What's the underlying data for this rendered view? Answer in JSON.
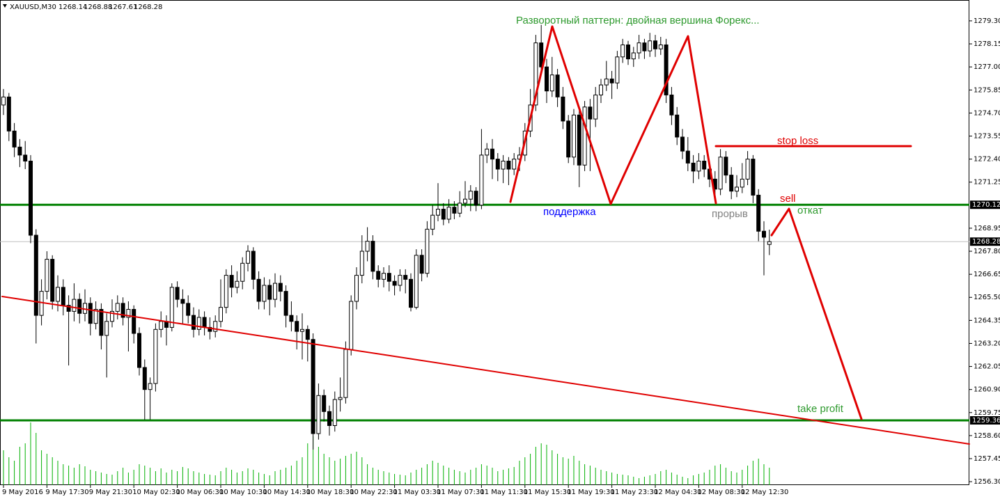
{
  "chart_data": {
    "type": "candlestick",
    "title": "XAUUSD,M30",
    "quote": [
      1268.14,
      1268.88,
      1267.61,
      1268.28
    ],
    "up_color": "#ffffff",
    "down_color": "#000000",
    "wick_color": "#000000",
    "volume_color": "#00b000",
    "ylim": [
      1256.13,
      1280.34
    ],
    "yticks": [
      {
        "value": 1279.3,
        "label": "1279.30"
      },
      {
        "value": 1278.15,
        "label": "1278.15"
      },
      {
        "value": 1277.0,
        "label": "1277.00"
      },
      {
        "value": 1275.85,
        "label": "1275.85"
      },
      {
        "value": 1274.7,
        "label": "1274.70"
      },
      {
        "value": 1273.55,
        "label": "1273.55"
      },
      {
        "value": 1272.4,
        "label": "1272.40"
      },
      {
        "value": 1271.25,
        "label": "1271.25"
      },
      {
        "value": 1268.95,
        "label": "1268.95"
      },
      {
        "value": 1267.8,
        "label": "1267.80"
      },
      {
        "value": 1266.65,
        "label": "1266.65"
      },
      {
        "value": 1265.5,
        "label": "1265.50"
      },
      {
        "value": 1264.35,
        "label": "1264.35"
      },
      {
        "value": 1263.2,
        "label": "1263.20"
      },
      {
        "value": 1262.05,
        "label": "1262.05"
      },
      {
        "value": 1260.9,
        "label": "1260.90"
      },
      {
        "value": 1259.75,
        "label": "1259.75"
      },
      {
        "value": 1258.6,
        "label": "1258.60"
      },
      {
        "value": 1257.45,
        "label": "1257.45"
      },
      {
        "value": 1256.3,
        "label": "1256.30"
      }
    ],
    "xticks": [
      {
        "value": 0,
        "label": "9 May 2016"
      },
      {
        "value": 8,
        "label": "9 May 17:30"
      },
      {
        "value": 16,
        "label": "9 May 21:30"
      },
      {
        "value": 24,
        "label": "10 May 02:30"
      },
      {
        "value": 32,
        "label": "10 May 06:30"
      },
      {
        "value": 40,
        "label": "10 May 10:30"
      },
      {
        "value": 48,
        "label": "10 May 14:30"
      },
      {
        "value": 56,
        "label": "10 May 18:30"
      },
      {
        "value": 64,
        "label": "10 May 22:30"
      },
      {
        "value": 72,
        "label": "11 May 03:30"
      },
      {
        "value": 80,
        "label": "11 May 07:30"
      },
      {
        "value": 88,
        "label": "11 May 11:30"
      },
      {
        "value": 96,
        "label": "11 May 15:30"
      },
      {
        "value": 104,
        "label": "11 May 19:30"
      },
      {
        "value": 112,
        "label": "11 May 23:30"
      },
      {
        "value": 120,
        "label": "12 May 04:30"
      },
      {
        "value": 128,
        "label": "12 May 08:30"
      },
      {
        "value": 136,
        "label": "12 May 12:30"
      }
    ],
    "levels": [
      {
        "value": 1270.12,
        "color": "#008000"
      },
      {
        "value": 1268.28,
        "color": "#c0c0c0"
      },
      {
        "value": 1259.36,
        "color": "#008000"
      }
    ],
    "annotations": [
      {
        "text": "Разворотный паттерн: двойная вершина Форекс...",
        "color": "#2e9a2e"
      },
      {
        "text": "stop loss",
        "color": "#e00000"
      },
      {
        "text": "sell",
        "color": "#e00000"
      },
      {
        "text": "откат",
        "color": "#2e9a2e"
      },
      {
        "text": "поддержка",
        "color": "#0000ff"
      },
      {
        "text": "прорыв",
        "color": "#808080"
      },
      {
        "text": "take profit",
        "color": "#2e9a2e"
      }
    ],
    "ohlc": [
      [
        1275.1,
        1275.9,
        1274.6,
        1275.5
      ],
      [
        1275.5,
        1275.7,
        1273.3,
        1273.8
      ],
      [
        1273.8,
        1274.2,
        1272.5,
        1273.0
      ],
      [
        1273.0,
        1273.4,
        1272.0,
        1272.6
      ],
      [
        1272.6,
        1273.3,
        1271.9,
        1272.3
      ],
      [
        1272.3,
        1272.6,
        1268.2,
        1268.6
      ],
      [
        1268.6,
        1268.9,
        1263.2,
        1264.6
      ],
      [
        1264.6,
        1266.4,
        1264.1,
        1265.8
      ],
      [
        1265.8,
        1267.8,
        1265.4,
        1267.4
      ],
      [
        1267.4,
        1267.6,
        1264.9,
        1265.3
      ],
      [
        1265.3,
        1266.6,
        1264.8,
        1266.0
      ],
      [
        1266.0,
        1266.4,
        1264.6,
        1265.1
      ],
      [
        1265.1,
        1265.6,
        1262.1,
        1264.8
      ],
      [
        1264.8,
        1266.2,
        1264.3,
        1265.4
      ],
      [
        1265.4,
        1265.7,
        1264.2,
        1264.7
      ],
      [
        1264.7,
        1265.9,
        1264.3,
        1265.2
      ],
      [
        1265.2,
        1265.5,
        1263.6,
        1264.2
      ],
      [
        1264.2,
        1265.3,
        1263.9,
        1264.9
      ],
      [
        1264.9,
        1265.2,
        1262.9,
        1263.6
      ],
      [
        1263.6,
        1264.7,
        1261.5,
        1264.3
      ],
      [
        1264.3,
        1265.4,
        1264.0,
        1264.8
      ],
      [
        1264.8,
        1265.6,
        1264.4,
        1265.2
      ],
      [
        1265.2,
        1265.5,
        1264.1,
        1264.5
      ],
      [
        1264.5,
        1265.3,
        1262.8,
        1264.9
      ],
      [
        1264.9,
        1265.1,
        1263.2,
        1263.7
      ],
      [
        1263.7,
        1264.0,
        1261.6,
        1262.0
      ],
      [
        1262.0,
        1262.4,
        1259.4,
        1260.9
      ],
      [
        1260.9,
        1261.5,
        1259.4,
        1261.2
      ],
      [
        1261.2,
        1264.2,
        1260.8,
        1263.9
      ],
      [
        1263.9,
        1264.8,
        1263.5,
        1264.3
      ],
      [
        1264.3,
        1264.6,
        1263.1,
        1264.0
      ],
      [
        1264.0,
        1266.2,
        1263.8,
        1266.0
      ],
      [
        1266.0,
        1266.3,
        1265.0,
        1265.4
      ],
      [
        1265.4,
        1265.9,
        1264.2,
        1265.2
      ],
      [
        1265.2,
        1265.6,
        1264.2,
        1264.6
      ],
      [
        1264.6,
        1265.0,
        1263.5,
        1263.9
      ],
      [
        1263.9,
        1264.9,
        1263.6,
        1264.5
      ],
      [
        1264.5,
        1264.8,
        1263.6,
        1264.0
      ],
      [
        1264.0,
        1264.5,
        1263.4,
        1263.8
      ],
      [
        1263.8,
        1264.6,
        1263.5,
        1264.3
      ],
      [
        1264.3,
        1266.4,
        1264.0,
        1265.0
      ],
      [
        1265.0,
        1266.9,
        1264.7,
        1266.6
      ],
      [
        1266.6,
        1267.1,
        1265.5,
        1266.0
      ],
      [
        1266.0,
        1266.8,
        1265.7,
        1266.3
      ],
      [
        1266.3,
        1267.5,
        1265.9,
        1267.2
      ],
      [
        1267.2,
        1268.1,
        1266.8,
        1267.8
      ],
      [
        1267.8,
        1268.0,
        1265.9,
        1266.4
      ],
      [
        1266.4,
        1266.8,
        1264.9,
        1265.3
      ],
      [
        1265.3,
        1266.5,
        1264.9,
        1266.1
      ],
      [
        1266.1,
        1266.4,
        1264.6,
        1265.4
      ],
      [
        1265.4,
        1266.7,
        1265.0,
        1266.2
      ],
      [
        1266.2,
        1266.6,
        1265.3,
        1265.8
      ],
      [
        1265.8,
        1266.1,
        1264.0,
        1264.6
      ],
      [
        1264.6,
        1265.3,
        1263.8,
        1264.3
      ],
      [
        1264.3,
        1264.6,
        1262.9,
        1263.8
      ],
      [
        1263.8,
        1264.7,
        1262.4,
        1263.9
      ],
      [
        1263.9,
        1264.1,
        1262.3,
        1263.4
      ],
      [
        1263.4,
        1263.7,
        1257.9,
        1258.7
      ],
      [
        1258.7,
        1261.2,
        1258.4,
        1260.6
      ],
      [
        1260.6,
        1260.9,
        1259.3,
        1259.8
      ],
      [
        1259.8,
        1260.1,
        1258.6,
        1259.1
      ],
      [
        1259.1,
        1260.8,
        1258.8,
        1260.4
      ],
      [
        1260.4,
        1261.5,
        1259.8,
        1260.5
      ],
      [
        1260.5,
        1263.3,
        1260.2,
        1262.9
      ],
      [
        1262.9,
        1265.6,
        1262.6,
        1265.3
      ],
      [
        1265.3,
        1267.0,
        1264.9,
        1266.6
      ],
      [
        1266.6,
        1268.6,
        1266.2,
        1267.8
      ],
      [
        1267.8,
        1269.0,
        1267.3,
        1268.3
      ],
      [
        1268.3,
        1268.6,
        1266.4,
        1266.8
      ],
      [
        1266.8,
        1267.1,
        1266.0,
        1266.4
      ],
      [
        1266.4,
        1267.0,
        1266.0,
        1266.7
      ],
      [
        1266.7,
        1267.1,
        1265.8,
        1266.3
      ],
      [
        1266.3,
        1266.6,
        1265.6,
        1266.1
      ],
      [
        1266.1,
        1266.9,
        1265.8,
        1266.6
      ],
      [
        1266.6,
        1266.9,
        1265.7,
        1266.4
      ],
      [
        1266.4,
        1266.7,
        1264.8,
        1265.0
      ],
      [
        1265.0,
        1267.9,
        1264.9,
        1267.6
      ],
      [
        1267.6,
        1267.9,
        1266.3,
        1266.7
      ],
      [
        1266.7,
        1269.3,
        1266.5,
        1268.9
      ],
      [
        1268.9,
        1270.1,
        1268.6,
        1269.6
      ],
      [
        1269.6,
        1271.2,
        1269.3,
        1269.9
      ],
      [
        1269.9,
        1270.2,
        1269.1,
        1269.4
      ],
      [
        1269.4,
        1270.4,
        1269.2,
        1270.0
      ],
      [
        1270.0,
        1270.3,
        1269.4,
        1269.7
      ],
      [
        1269.7,
        1270.8,
        1269.5,
        1270.2
      ],
      [
        1270.2,
        1271.3,
        1270.0,
        1270.4
      ],
      [
        1270.4,
        1271.1,
        1269.8,
        1270.8
      ],
      [
        1270.8,
        1271.0,
        1269.8,
        1270.1
      ],
      [
        1270.1,
        1273.9,
        1269.9,
        1272.6
      ],
      [
        1272.6,
        1273.2,
        1272.2,
        1272.9
      ],
      [
        1272.9,
        1273.4,
        1271.4,
        1272.4
      ],
      [
        1272.4,
        1272.7,
        1271.3,
        1271.9
      ],
      [
        1271.9,
        1272.6,
        1271.2,
        1272.3
      ],
      [
        1272.3,
        1272.5,
        1271.1,
        1271.9
      ],
      [
        1271.9,
        1272.7,
        1271.6,
        1272.4
      ],
      [
        1272.4,
        1273.0,
        1271.8,
        1272.6
      ],
      [
        1272.6,
        1274.2,
        1272.3,
        1273.8
      ],
      [
        1273.8,
        1275.9,
        1273.5,
        1275.1
      ],
      [
        1275.1,
        1278.6,
        1274.8,
        1278.2
      ],
      [
        1278.2,
        1279.1,
        1276.6,
        1277.0
      ],
      [
        1277.0,
        1277.4,
        1275.2,
        1275.8
      ],
      [
        1275.8,
        1277.5,
        1275.5,
        1276.6
      ],
      [
        1276.6,
        1276.9,
        1275.0,
        1275.5
      ],
      [
        1275.5,
        1276.0,
        1273.9,
        1274.3
      ],
      [
        1274.3,
        1274.6,
        1272.2,
        1272.5
      ],
      [
        1272.5,
        1274.9,
        1272.1,
        1274.6
      ],
      [
        1274.6,
        1274.9,
        1271.0,
        1272.1
      ],
      [
        1272.1,
        1275.3,
        1271.8,
        1275.0
      ],
      [
        1275.0,
        1275.4,
        1271.8,
        1274.4
      ],
      [
        1274.4,
        1276.0,
        1274.0,
        1275.6
      ],
      [
        1275.6,
        1276.4,
        1275.2,
        1276.1
      ],
      [
        1276.1,
        1277.3,
        1275.8,
        1276.4
      ],
      [
        1276.4,
        1276.8,
        1275.4,
        1276.2
      ],
      [
        1276.2,
        1277.8,
        1275.9,
        1277.5
      ],
      [
        1277.5,
        1278.4,
        1277.2,
        1278.1
      ],
      [
        1278.1,
        1278.3,
        1277.1,
        1277.4
      ],
      [
        1277.4,
        1278.0,
        1277.0,
        1277.7
      ],
      [
        1277.7,
        1278.6,
        1277.4,
        1278.2
      ],
      [
        1278.2,
        1278.4,
        1277.4,
        1277.8
      ],
      [
        1277.8,
        1278.7,
        1277.5,
        1278.3
      ],
      [
        1278.3,
        1278.6,
        1277.5,
        1277.9
      ],
      [
        1277.9,
        1278.5,
        1277.6,
        1278.1
      ],
      [
        1278.1,
        1278.4,
        1275.2,
        1275.6
      ],
      [
        1275.6,
        1276.0,
        1274.1,
        1274.6
      ],
      [
        1274.6,
        1275.0,
        1273.1,
        1273.5
      ],
      [
        1273.5,
        1273.9,
        1272.4,
        1272.8
      ],
      [
        1272.8,
        1273.5,
        1271.8,
        1272.2
      ],
      [
        1272.2,
        1272.6,
        1271.2,
        1271.8
      ],
      [
        1271.8,
        1272.7,
        1271.4,
        1272.3
      ],
      [
        1272.3,
        1272.6,
        1271.5,
        1271.9
      ],
      [
        1271.9,
        1272.3,
        1271.0,
        1271.4
      ],
      [
        1271.4,
        1271.8,
        1270.5,
        1270.9
      ],
      [
        1270.9,
        1272.9,
        1270.6,
        1272.5
      ],
      [
        1272.5,
        1272.8,
        1271.2,
        1271.6
      ],
      [
        1271.6,
        1272.0,
        1270.4,
        1270.8
      ],
      [
        1270.8,
        1271.6,
        1270.5,
        1271.0
      ],
      [
        1271.0,
        1272.2,
        1270.7,
        1271.4
      ],
      [
        1271.4,
        1272.8,
        1271.1,
        1272.4
      ],
      [
        1272.4,
        1272.6,
        1270.2,
        1270.6
      ],
      [
        1270.6,
        1270.9,
        1268.3,
        1268.8
      ],
      [
        1268.8,
        1269.3,
        1266.6,
        1268.5
      ],
      [
        1268.14,
        1268.88,
        1267.61,
        1268.28
      ]
    ],
    "volume": [
      50,
      40,
      35,
      55,
      60,
      90,
      75,
      50,
      45,
      40,
      35,
      30,
      28,
      25,
      30,
      27,
      22,
      20,
      18,
      16,
      15,
      20,
      25,
      18,
      22,
      30,
      28,
      25,
      20,
      24,
      18,
      22,
      20,
      26,
      24,
      20,
      18,
      16,
      15,
      14,
      20,
      25,
      22,
      18,
      20,
      24,
      22,
      18,
      16,
      14,
      20,
      22,
      25,
      28,
      35,
      40,
      60,
      70,
      55,
      45,
      40,
      35,
      38,
      42,
      45,
      48,
      40,
      30,
      25,
      22,
      20,
      18,
      16,
      15,
      14,
      18,
      22,
      25,
      30,
      35,
      32,
      28,
      25,
      22,
      20,
      18,
      22,
      25,
      30,
      28,
      25,
      20,
      22,
      24,
      26,
      35,
      40,
      45,
      55,
      60,
      58,
      50,
      45,
      40,
      38,
      42,
      35,
      30,
      28,
      25,
      22,
      20,
      18,
      16,
      15,
      14,
      12,
      10,
      12,
      14,
      16,
      20,
      22,
      18,
      15,
      12,
      10,
      14,
      16,
      18,
      22,
      28,
      30,
      25,
      20,
      18,
      22,
      28,
      35,
      38,
      30,
      25
    ]
  }
}
